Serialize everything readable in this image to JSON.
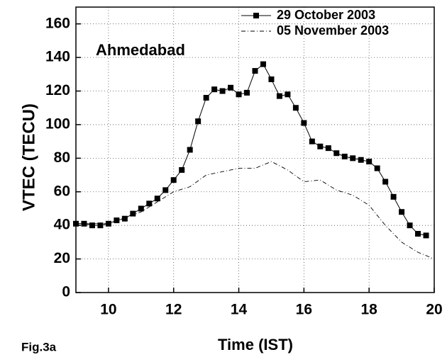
{
  "chart_data": {
    "type": "line",
    "xlabel": "Time (IST)",
    "ylabel": "VTEC (TECU)",
    "annotations": [
      "Ahmedabad",
      "Fig.3a"
    ],
    "xlim": [
      9,
      20
    ],
    "ylim": [
      0,
      170
    ],
    "xticks": [
      10,
      12,
      14,
      16,
      18,
      20
    ],
    "yticks": [
      0,
      20,
      40,
      60,
      80,
      100,
      120,
      140,
      160
    ],
    "grid": true,
    "legend": "upper right",
    "series": [
      {
        "name": "29 October 2003",
        "color": "#000000",
        "marker": "square",
        "style": "solid",
        "x": [
          9.0,
          9.25,
          9.5,
          9.75,
          10.0,
          10.25,
          10.5,
          10.75,
          11.0,
          11.25,
          11.5,
          11.75,
          12.0,
          12.25,
          12.5,
          12.75,
          13.0,
          13.25,
          13.5,
          13.75,
          14.0,
          14.25,
          14.5,
          14.75,
          15.0,
          15.25,
          15.5,
          15.75,
          16.0,
          16.25,
          16.5,
          16.75,
          17.0,
          17.25,
          17.5,
          17.75,
          18.0,
          18.25,
          18.5,
          18.75,
          19.0,
          19.25,
          19.5,
          19.75
        ],
        "values": [
          41,
          41,
          40,
          40,
          41,
          43,
          44,
          47,
          50,
          53,
          56,
          61,
          67,
          73,
          85,
          102,
          116,
          121,
          120,
          122,
          118,
          119,
          132,
          136,
          127,
          117,
          118,
          110,
          101,
          90,
          87,
          86,
          83,
          81,
          80,
          79,
          78,
          74,
          66,
          57,
          48,
          40,
          35,
          34
        ]
      },
      {
        "name": "05 November 2003",
        "color": "#000000",
        "marker": "none",
        "style": "dashdot",
        "x": [
          9,
          10,
          11,
          12,
          12.5,
          13,
          13.5,
          14,
          14.5,
          15,
          15.5,
          16,
          16.5,
          17,
          17.5,
          18,
          18.5,
          19,
          19.5,
          20
        ],
        "values": [
          41,
          41,
          48,
          60,
          63,
          70,
          72,
          74,
          74,
          78,
          73,
          66,
          67,
          61,
          58,
          52,
          40,
          30,
          24,
          20
        ]
      }
    ]
  }
}
